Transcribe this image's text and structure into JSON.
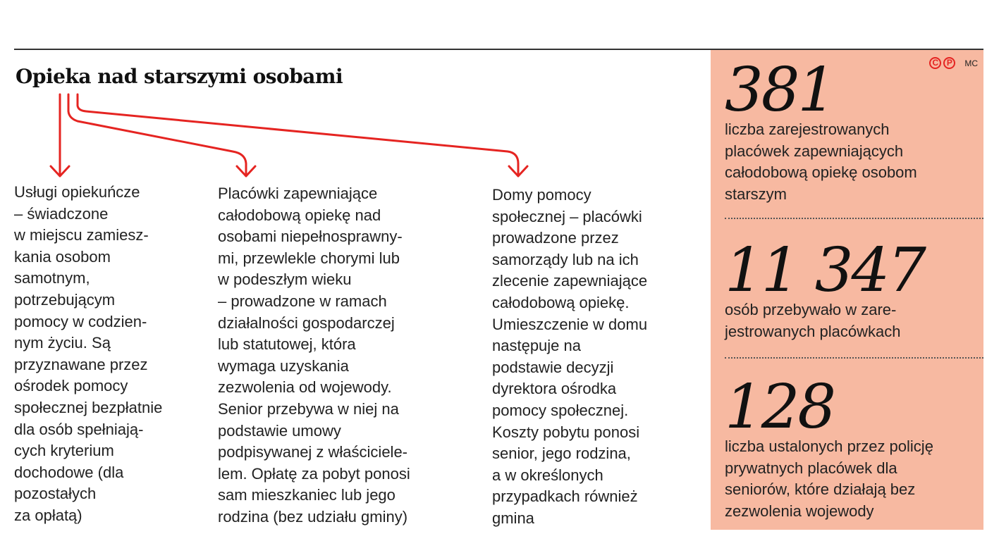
{
  "title": "Opieka nad starszymi osobami",
  "accent_color": "#e52421",
  "panel_color": "#f7b9a1",
  "columns": [
    [
      "Usługi opiekuńcze",
      "– świadczone",
      "w miejscu zamiesz-",
      "kania osobom",
      "samotnym,",
      "potrzebującym",
      "pomocy w codzien-",
      "nym życiu. Są",
      "przyznawane przez",
      "ośrodek pomocy",
      "społecznej bezpłatnie",
      "dla osób spełniają-",
      "cych kryterium",
      "dochodowe (dla",
      "pozostałych",
      "za opłatą)"
    ],
    [
      "Placówki zapewniające",
      "całodobową opiekę nad",
      "osobami niepełnosprawny-",
      "mi, przewlekle chorymi lub",
      "w podeszłym wieku",
      "– prowadzone w ramach",
      "działalności gospodarczej",
      "lub statutowej, która",
      "wymaga  uzyskania",
      "zezwolenia od wojewody.",
      "Senior przebywa w niej na",
      "podstawie umowy",
      "podpisywanej z właściciele-",
      "lem. Opłatę za pobyt ponosi",
      "sam mieszkaniec lub jego",
      "rodzina (bez udziału gminy)"
    ],
    [
      "Domy pomocy",
      "społecznej – placówki",
      "prowadzone przez",
      "samorządy lub na ich",
      "zlecenie zapewniające",
      "całodobową opiekę.",
      "Umieszczenie w domu",
      "następuje na",
      "podstawie decyzji",
      "dyrektora ośrodka",
      "pomocy społecznej.",
      "Koszty pobytu ponosi",
      "senior, jego rodzina,",
      "a w określonych",
      "przypadkach również",
      "gmina"
    ]
  ],
  "logo": {
    "c": "C",
    "p": "P",
    "author": "MC"
  },
  "stats": [
    {
      "value": "381",
      "lines": [
        "liczba zarejestrowanych",
        "placówek zapewniających",
        "całodobową opiekę osobom",
        "starszym"
      ]
    },
    {
      "value": "11 347",
      "lines": [
        "osób przebywało w zare-",
        "jestrowanych placówkach"
      ]
    },
    {
      "value": "128",
      "lines": [
        "liczba ustalonych przez policję",
        "prywatnych placówek dla",
        "seniorów, które działają bez",
        "zezwolenia wojewody"
      ]
    }
  ]
}
